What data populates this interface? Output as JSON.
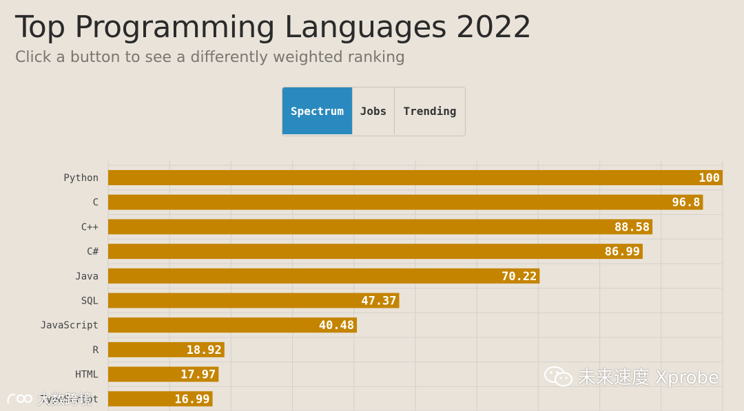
{
  "header": {
    "title": "Top Programming Languages 2022",
    "subtitle": "Click a button to see a differently weighted ranking"
  },
  "buttons": [
    {
      "label": "Spectrum",
      "active": true
    },
    {
      "label": "Jobs",
      "active": false
    },
    {
      "label": "Trending",
      "active": false
    }
  ],
  "colors": {
    "background": "#e9e3da",
    "bar": "#c48400",
    "active_button": "#2a8abf",
    "grid": "#d6d2cc",
    "label_text": "#444444"
  },
  "chart_data": {
    "type": "bar",
    "orientation": "horizontal",
    "categories": [
      "Python",
      "C",
      "C++",
      "C#",
      "Java",
      "SQL",
      "JavaScript",
      "R",
      "HTML",
      "TypeScript"
    ],
    "values": [
      100,
      96.8,
      88.58,
      86.99,
      70.22,
      47.37,
      40.48,
      18.92,
      17.97,
      16.99
    ],
    "value_labels": [
      "100",
      "96.8",
      "88.58",
      "86.99",
      "70.22",
      "47.37",
      "40.48",
      "18.92",
      "17.97",
      "16.99"
    ],
    "xlim": [
      0,
      100
    ],
    "grid": true
  },
  "watermarks": {
    "right": "未来速度 Xprobe",
    "left": "大数跨境"
  }
}
